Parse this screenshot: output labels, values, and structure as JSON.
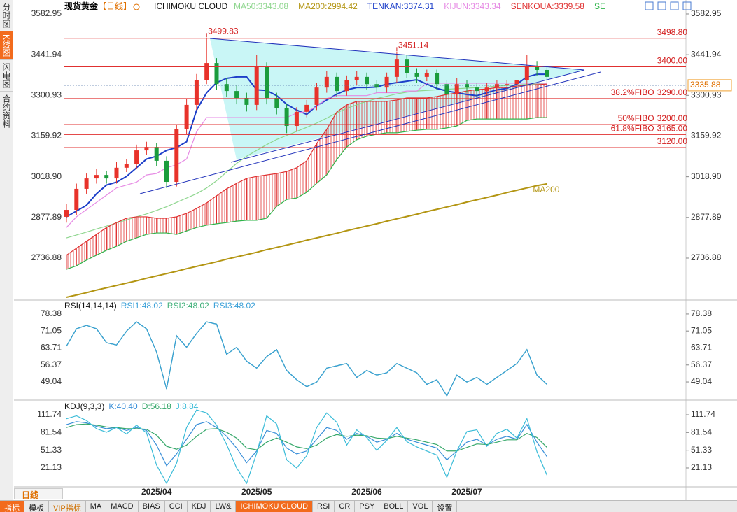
{
  "sidebar": [
    "分时图",
    "K线图",
    "闪电图",
    "合约资料"
  ],
  "header": {
    "symbol": "现货黄金",
    "period": "【日线】",
    "indicator": "ICHIMOKU CLOUD"
  },
  "period_tab": "日线",
  "toolbar": [
    "指标",
    "模板",
    "VIP指标",
    "MA",
    "MACD",
    "BIAS",
    "CCI",
    "KDJ",
    "LW&",
    "ICHIMOKU CLOUD",
    "RSI",
    "CR",
    "PSY",
    "BOLL",
    "VOL",
    "设置"
  ],
  "chart_data": [
    {
      "type": "candlestick",
      "categories": [
        null,
        null,
        null,
        null,
        null,
        null,
        null,
        null,
        null,
        "2025/04",
        null,
        null,
        null,
        null,
        null,
        null,
        null,
        null,
        null,
        "2025/05",
        null,
        null,
        null,
        null,
        null,
        null,
        null,
        null,
        null,
        null,
        "2025/06",
        null,
        null,
        null,
        null,
        null,
        null,
        null,
        null,
        null,
        "2025/07",
        null,
        null,
        null,
        null,
        null,
        null,
        null,
        null
      ],
      "open": [
        2880,
        2904,
        2977,
        3013,
        3025,
        3013,
        3050,
        3062,
        3110,
        3122,
        3074,
        3001,
        3183,
        3268,
        3353,
        3413,
        3340,
        3316,
        3292,
        3268,
        3401,
        3292,
        3256,
        3195,
        3244,
        3268,
        3328,
        3365,
        3316,
        3353,
        3365,
        3340,
        3328,
        3365,
        3425,
        3377,
        3365,
        3377,
        3340,
        3304,
        3340,
        3328,
        3316,
        3328,
        3340,
        3340,
        3353,
        3401,
        3389
      ],
      "high": [
        2925,
        2995,
        3030,
        3045,
        3040,
        3070,
        3080,
        3130,
        3140,
        3135,
        3090,
        3200,
        3290,
        3375,
        3499.83,
        3430,
        3360,
        3335,
        3310,
        3440,
        3415,
        3310,
        3270,
        3260,
        3285,
        3345,
        3385,
        3380,
        3370,
        3385,
        3380,
        3355,
        3380,
        3451.14,
        3440,
        3395,
        3390,
        3390,
        3355,
        3360,
        3355,
        3345,
        3345,
        3355,
        3355,
        3370,
        3440,
        3420,
        3400
      ],
      "low": [
        2860,
        2885,
        2960,
        2995,
        2995,
        2995,
        3035,
        3045,
        3095,
        3055,
        2980,
        2985,
        3165,
        3250,
        3340,
        3320,
        3295,
        3270,
        3245,
        3250,
        3270,
        3235,
        3170,
        3175,
        3225,
        3250,
        3310,
        3295,
        3300,
        3335,
        3320,
        3310,
        3310,
        3345,
        3360,
        3345,
        3350,
        3320,
        3285,
        3285,
        3310,
        3295,
        3300,
        3310,
        3320,
        3320,
        3335,
        3370,
        3345
      ],
      "close": [
        2904,
        2977,
        3013,
        3025,
        3013,
        3050,
        3062,
        3110,
        3122,
        3074,
        3001,
        3183,
        3268,
        3353,
        3413,
        3340,
        3316,
        3292,
        3268,
        3401,
        3292,
        3256,
        3195,
        3244,
        3268,
        3328,
        3365,
        3316,
        3353,
        3365,
        3340,
        3328,
        3365,
        3425,
        3377,
        3365,
        3377,
        3340,
        3304,
        3340,
        3328,
        3316,
        3328,
        3340,
        3340,
        3353,
        3401,
        3389,
        3365
      ],
      "high_labels": [
        null,
        null,
        null,
        null,
        null,
        null,
        null,
        null,
        null,
        null,
        null,
        null,
        null,
        null,
        "3499.83",
        null,
        null,
        null,
        null,
        null,
        null,
        null,
        null,
        null,
        null,
        null,
        null,
        null,
        null,
        null,
        null,
        null,
        null,
        "3451.14",
        null,
        null,
        null,
        null,
        null,
        null,
        null,
        null,
        null,
        null,
        null,
        null,
        null,
        null,
        null
      ],
      "up_color": "#e8322a",
      "down_color": "#1a9c3c",
      "series": [
        {
          "name": "MA50:3343.08",
          "color": "#8fd68f",
          "values": [
            2807,
            2817,
            2827,
            2838,
            2848,
            2859,
            2869,
            2880,
            2890,
            2902,
            2915,
            2930,
            2945,
            2960,
            2980,
            3005,
            3035,
            3065,
            3090,
            3110,
            3130,
            3148,
            3162,
            3176,
            3190,
            3205,
            3222,
            3240,
            3256,
            3268,
            3280,
            3290,
            3298,
            3306,
            3312,
            3316,
            3318,
            3320,
            3322,
            3324,
            3326,
            3328,
            3330,
            3333,
            3335,
            3337,
            3339,
            3341,
            3343
          ]
        },
        {
          "name": "MA200:2994.42",
          "color": "#b39512",
          "values": [
            2601,
            2609,
            2617,
            2626,
            2634,
            2642,
            2650,
            2658,
            2667,
            2675,
            2683,
            2691,
            2700,
            2708,
            2716,
            2724,
            2733,
            2741,
            2749,
            2757,
            2766,
            2774,
            2782,
            2790,
            2799,
            2807,
            2815,
            2823,
            2832,
            2840,
            2848,
            2856,
            2865,
            2873,
            2881,
            2889,
            2898,
            2906,
            2914,
            2922,
            2931,
            2939,
            2947,
            2955,
            2964,
            2972,
            2980,
            2988,
            2994
          ]
        },
        {
          "name": "TENKAN:3374.31",
          "color": "#1d3fc9",
          "values": [
            2880,
            2900,
            2920,
            2960,
            2990,
            3000,
            3020,
            3050,
            3080,
            3090,
            3110,
            3120,
            3140,
            3250,
            3310,
            3345,
            3360,
            3365,
            3365,
            3320,
            3318,
            3300,
            3270,
            3250,
            3235,
            3265,
            3285,
            3305,
            3320,
            3328,
            3328,
            3330,
            3340,
            3345,
            3350,
            3355,
            3340,
            3325,
            3316,
            3310,
            3304,
            3300,
            3310,
            3320,
            3325,
            3340,
            3365,
            3374,
            3374
          ]
        },
        {
          "name": "KIJUN:3343.34",
          "color": "#e68ae4",
          "values": [
            2843,
            2880,
            2905,
            2930,
            2955,
            2980,
            2990,
            3000,
            3025,
            3030,
            3050,
            3060,
            3080,
            3175,
            3224,
            3224,
            3224,
            3224,
            3224,
            3224,
            3224,
            3224,
            3224,
            3240,
            3245,
            3262,
            3290,
            3300,
            3300,
            3300,
            3300,
            3310,
            3310,
            3310,
            3316,
            3316,
            3343,
            3343,
            3343,
            3343,
            3343,
            3343,
            3343,
            3343,
            3343,
            3343,
            3343,
            3343,
            3343
          ]
        },
        {
          "name": "SENKOUA:3339.58",
          "color": "#e03030",
          "values": [
            2747,
            2771,
            2795,
            2819,
            2843,
            2860,
            2875,
            2880,
            2880,
            2875,
            2875,
            2880,
            2892,
            2909,
            2928,
            2953,
            2977,
            2996,
            3013,
            3020,
            3025,
            3030,
            3037,
            3050,
            3074,
            3134,
            3183,
            3243,
            3268,
            3280,
            3280,
            3280,
            3280,
            3285,
            3292,
            3292,
            3292,
            3297,
            3304,
            3309,
            3316,
            3321,
            3323,
            3328,
            3328,
            3333,
            3336,
            3338,
            3340
          ]
        },
        {
          "name": "SE",
          "color": "#2fb44a",
          "values": [
            2698,
            2710,
            2730,
            2747,
            2764,
            2778,
            2795,
            2807,
            2819,
            2824,
            2824,
            2819,
            2831,
            2843,
            2851,
            2856,
            2860,
            2865,
            2868,
            2868,
            2875,
            2916,
            2940,
            2945,
            2965,
            2996,
            3025,
            3078,
            3122,
            3147,
            3159,
            3166,
            3171,
            3171,
            3176,
            3180,
            3183,
            3183,
            3188,
            3195,
            3214,
            3219,
            3219,
            3219,
            3219,
            3219,
            3219,
            3224,
            3224
          ]
        }
      ],
      "cloud_color": "#e03030",
      "levels": [
        {
          "value": 3498.8,
          "label": "3498.80"
        },
        {
          "value": 3400,
          "label": "3400.00"
        },
        {
          "value": 3290,
          "label": "3290.00",
          "name": "38.2%FIBO"
        },
        {
          "value": 3200,
          "label": "3200.00",
          "name": "50%FIBO"
        },
        {
          "value": 3165,
          "label": "3165.00",
          "name": "61.8%FIBO"
        },
        {
          "value": 3120,
          "label": "3120.00"
        }
      ],
      "last_price": 3335.88,
      "annotations": [
        {
          "text": "MA200",
          "series": 1
        }
      ],
      "ylim": [
        2593.8,
        3612.0
      ],
      "yticks": [
        {
          "value": 3582.95,
          "label": "3582.95"
        },
        {
          "value": 3441.94,
          "label": "3441.94"
        },
        {
          "value": 3300.93,
          "label": "3300.93"
        },
        {
          "value": 3159.92,
          "label": "3159.92"
        },
        {
          "value": 3018.9,
          "label": "3018.90"
        },
        {
          "value": 2877.89,
          "label": "2877.89"
        },
        {
          "value": 2736.88,
          "label": "2736.88"
        }
      ]
    },
    {
      "type": "line",
      "title": "RSI(14,14,14)",
      "series": [
        {
          "name": "RSI1:48.02",
          "color": "#3ba0d8",
          "values": [
            64.5,
            72,
            73.5,
            72,
            66,
            65,
            71,
            75,
            72,
            62,
            46,
            69,
            64,
            70,
            75,
            74,
            61,
            64,
            58,
            55,
            60,
            63,
            54,
            50,
            47,
            49,
            55,
            56,
            57,
            51,
            54,
            52,
            53,
            57,
            55,
            53,
            48,
            50,
            43,
            52,
            49,
            51,
            48,
            51,
            54,
            57,
            63,
            52,
            48.02
          ]
        },
        {
          "name": "RSI2:48.02",
          "color": "#41b07a",
          "values": [
            64.5,
            72,
            73.5,
            72,
            66,
            65,
            71,
            75,
            72,
            62,
            46,
            69,
            64,
            70,
            75,
            74,
            61,
            64,
            58,
            55,
            60,
            63,
            54,
            50,
            47,
            49,
            55,
            56,
            57,
            51,
            54,
            52,
            53,
            57,
            55,
            53,
            48,
            50,
            43,
            52,
            49,
            51,
            48,
            51,
            54,
            57,
            63,
            52,
            48.02
          ]
        },
        {
          "name": "RSI3:48.02",
          "color": "#3ba0d8",
          "values": [
            64.5,
            72,
            73.5,
            72,
            66,
            65,
            71,
            75,
            72,
            62,
            46,
            69,
            64,
            70,
            75,
            74,
            61,
            64,
            58,
            55,
            60,
            63,
            54,
            50,
            47,
            49,
            55,
            56,
            57,
            51,
            54,
            52,
            53,
            57,
            55,
            53,
            48,
            50,
            43,
            52,
            49,
            51,
            48,
            51,
            54,
            57,
            63,
            52,
            48.02
          ]
        }
      ],
      "ylim": [
        41.8,
        84.1
      ],
      "yticks": [
        78.38,
        71.05,
        63.71,
        56.37,
        49.04
      ]
    },
    {
      "type": "line",
      "title": "KDJ(9,3,3)",
      "series": [
        {
          "name": "K:40.40",
          "color": "#3a8fd8",
          "values": [
            95,
            100,
            98,
            92,
            88,
            90,
            85,
            90,
            85,
            60,
            25,
            45,
            70,
            95,
            100,
            90,
            75,
            55,
            30,
            50,
            85,
            80,
            55,
            45,
            50,
            70,
            90,
            85,
            70,
            80,
            75,
            65,
            70,
            80,
            70,
            65,
            60,
            55,
            35,
            50,
            65,
            70,
            60,
            70,
            75,
            70,
            95,
            65,
            40.4
          ]
        },
        {
          "name": "D:56.18",
          "color": "#36a86a",
          "values": [
            90,
            95,
            96,
            94,
            91,
            90,
            88,
            88,
            87,
            77,
            58,
            53,
            60,
            75,
            87,
            88,
            82,
            72,
            55,
            52,
            65,
            72,
            65,
            57,
            54,
            60,
            72,
            78,
            75,
            77,
            76,
            72,
            71,
            75,
            72,
            69,
            65,
            61,
            50,
            50,
            56,
            62,
            61,
            65,
            69,
            69,
            80,
            73,
            56.18
          ]
        },
        {
          "name": "J:8.84",
          "color": "#3bbcd8",
          "values": [
            105,
            110,
            102,
            88,
            82,
            90,
            79,
            94,
            81,
            26,
            -5,
            29,
            90,
            120,
            115,
            94,
            61,
            21,
            -5,
            46,
            110,
            96,
            35,
            21,
            42,
            90,
            115,
            99,
            60,
            86,
            73,
            51,
            68,
            90,
            66,
            57,
            50,
            43,
            5,
            50,
            83,
            86,
            58,
            80,
            87,
            72,
            105,
            49,
            8.84
          ]
        }
      ],
      "ylim": [
        -9.9,
        133.2
      ],
      "yticks": [
        111.74,
        81.54,
        51.33,
        21.13
      ]
    }
  ]
}
